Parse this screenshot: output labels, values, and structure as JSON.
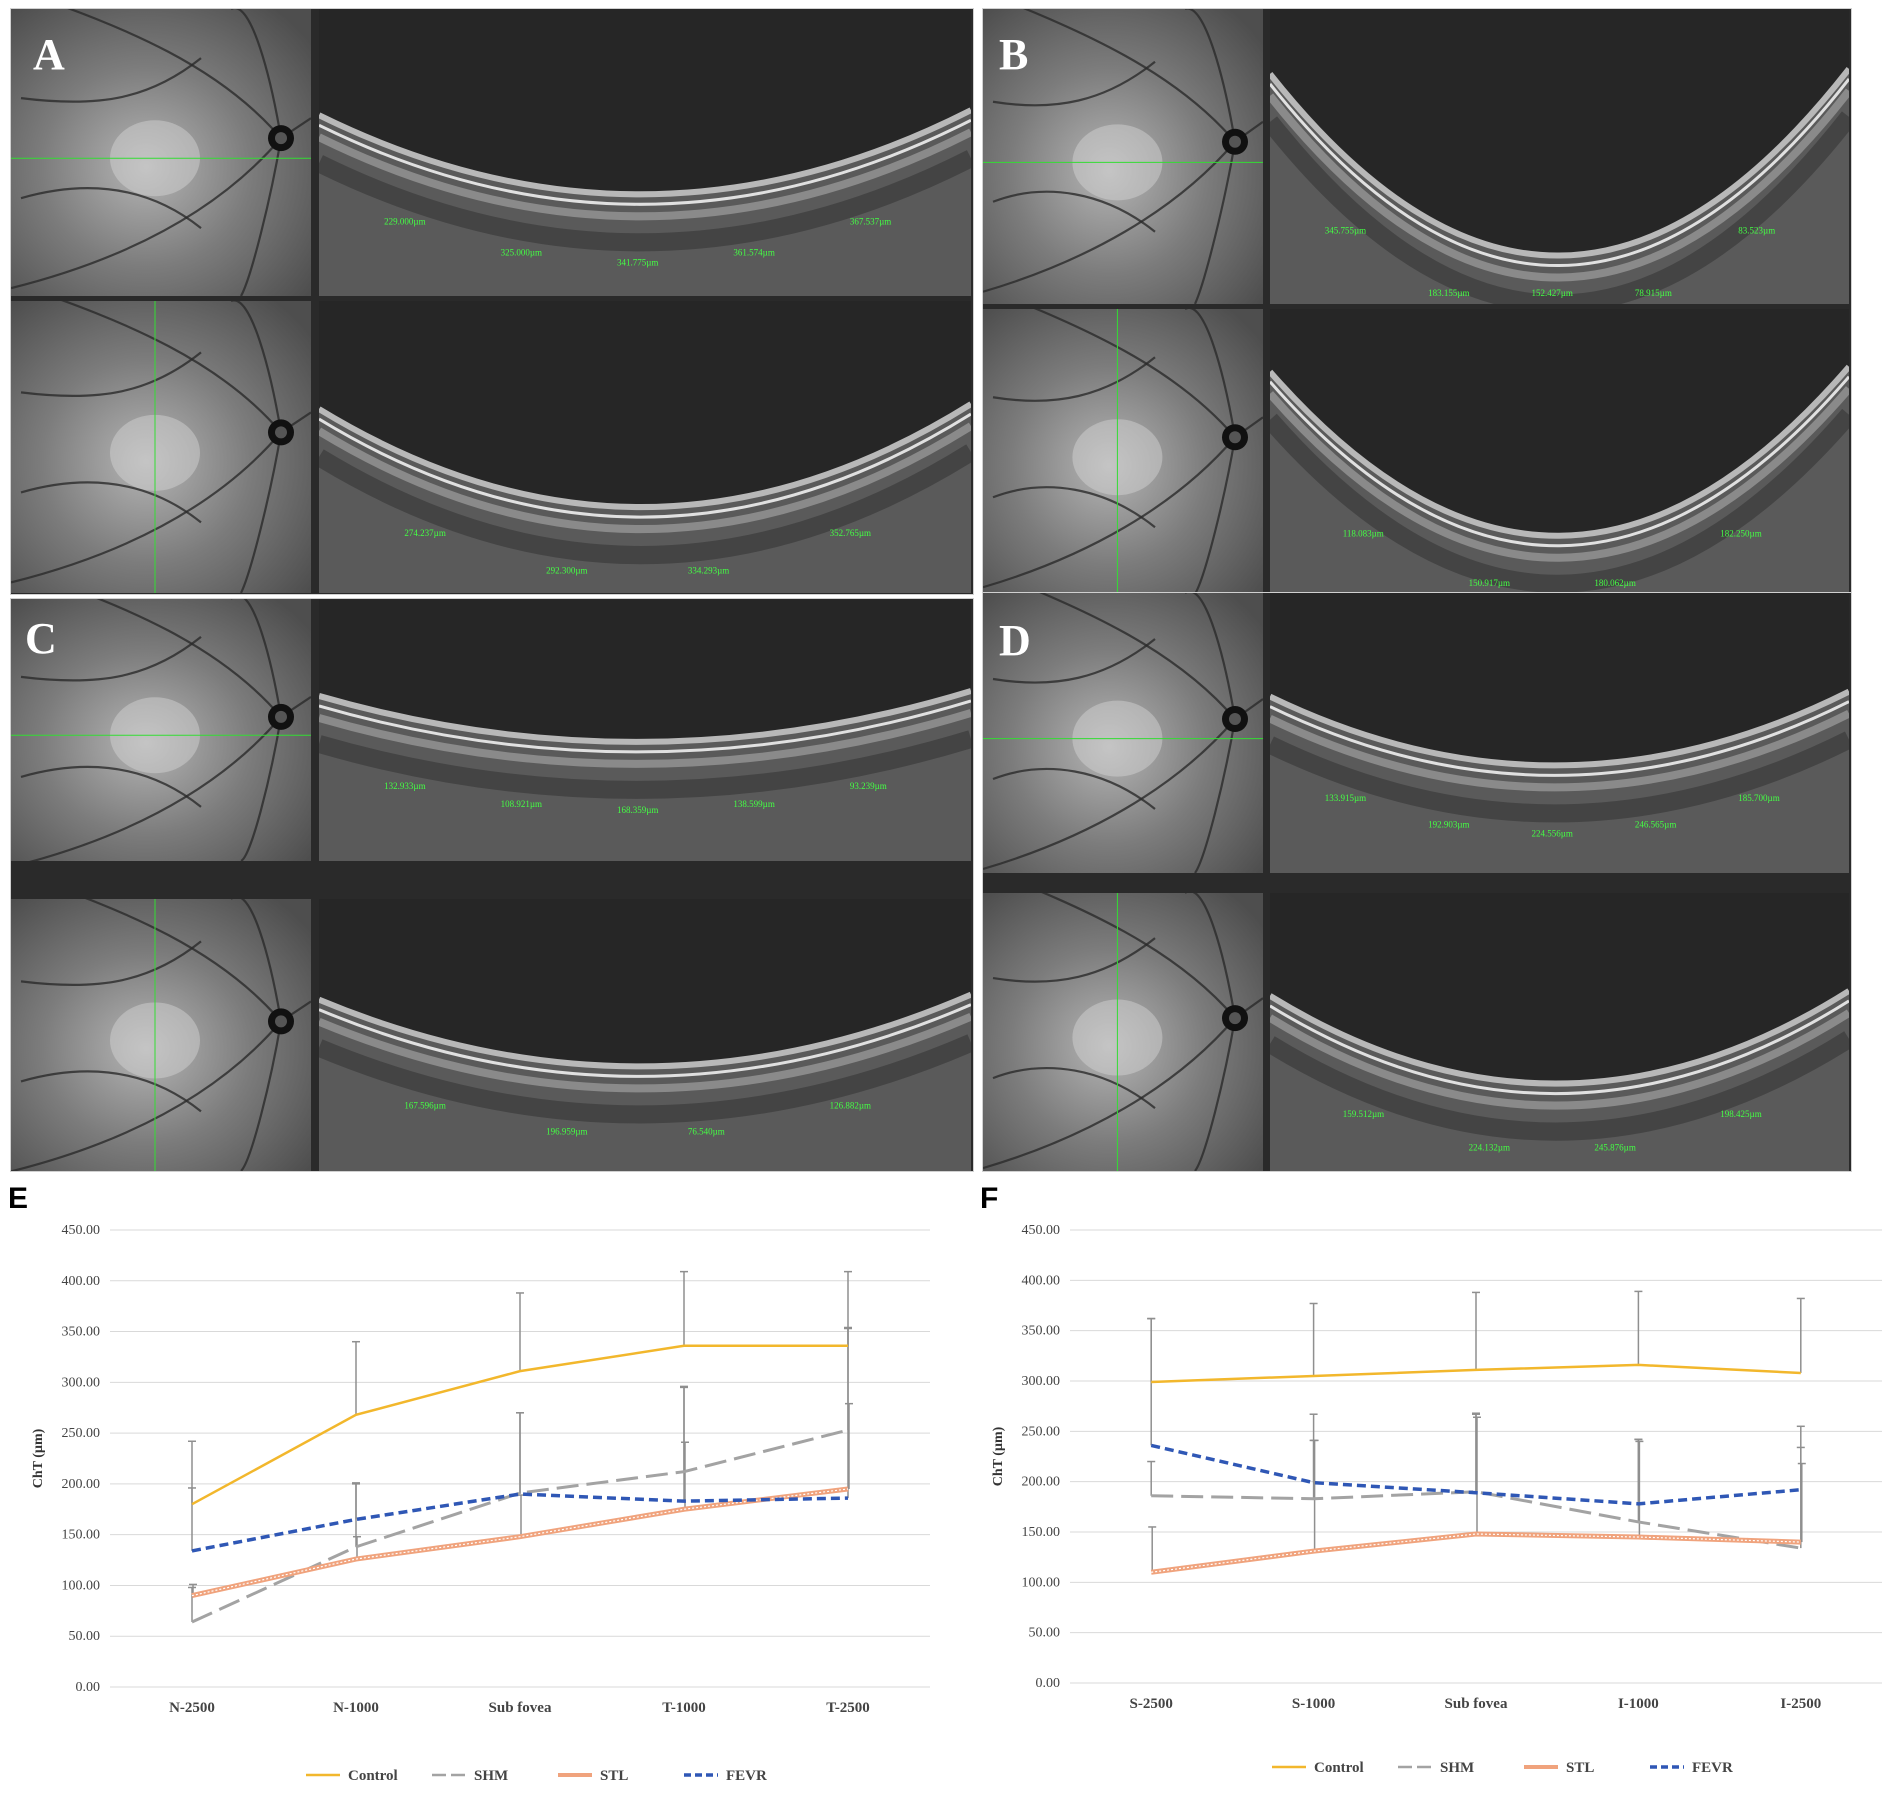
{
  "panels": [
    {
      "letter": "A",
      "top_measurements": [
        "229.000µm",
        "325.000µm",
        "341.775µm",
        "361.574µm",
        "367.537µm"
      ],
      "bottom_measurements": [
        "274.237µm",
        "292.300µm",
        "334.293µm",
        "352.765µm"
      ]
    },
    {
      "letter": "B",
      "top_measurements": [
        "345.755µm",
        "183.155µm",
        "152.427µm",
        "78.915µm",
        "83.523µm"
      ],
      "bottom_measurements": [
        "118.083µm",
        "150.917µm",
        "180.062µm",
        "182.250µm"
      ]
    },
    {
      "letter": "C",
      "top_measurements": [
        "132.933µm",
        "108.921µm",
        "168.359µm",
        "138.599µm",
        "93.239µm"
      ],
      "bottom_measurements": [
        "167.596µm",
        "196.959µm",
        "76.540µm",
        "126.882µm"
      ]
    },
    {
      "letter": "D",
      "top_measurements": [
        "133.915µm",
        "192.903µm",
        "224.556µm",
        "246.565µm",
        "185.700µm"
      ],
      "bottom_measurements": [
        "159.512µm",
        "224.132µm",
        "245.876µm",
        "198.425µm"
      ]
    }
  ],
  "colors": {
    "control": "#f2b72c",
    "shm": "#a3a3a3",
    "stl": "#f0a37d",
    "fevr": "#2f57b5",
    "measure": "#44ff44"
  },
  "chart_data": [
    {
      "panel": "E",
      "type": "line",
      "ylabel": "ChT (µm)",
      "ylim": [
        0,
        450
      ],
      "yticks": [
        "0.00",
        "50.00",
        "100.00",
        "150.00",
        "200.00",
        "250.00",
        "300.00",
        "350.00",
        "400.00",
        "450.00"
      ],
      "categories": [
        "N-2500",
        "N-1000",
        "Sub fovea",
        "T-1000",
        "T-2500"
      ],
      "legend": "bottom",
      "series": [
        {
          "name": "Control",
          "values": [
            180,
            268,
            311,
            336,
            336
          ],
          "errors": [
            62,
            72,
            77,
            73,
            73
          ]
        },
        {
          "name": "SHM",
          "values": [
            64,
            138,
            191,
            212,
            253
          ],
          "errors": [
            34,
            63,
            79,
            83,
            100
          ]
        },
        {
          "name": "STL",
          "values": [
            90,
            126,
            148,
            175,
            195
          ],
          "errors": [
            11,
            22,
            41,
            66,
            84
          ]
        },
        {
          "name": "FEVR",
          "values": [
            134,
            165,
            190,
            183,
            186
          ],
          "errors": [
            62,
            35,
            80,
            113,
            168
          ]
        }
      ]
    },
    {
      "panel": "F",
      "type": "line",
      "ylabel": "ChT (µm)",
      "ylim": [
        0,
        450
      ],
      "yticks": [
        "0.00",
        "50.00",
        "100.00",
        "150.00",
        "200.00",
        "250.00",
        "300.00",
        "350.00",
        "400.00",
        "450.00"
      ],
      "categories": [
        "S-2500",
        "S-1000",
        "Sub fovea",
        "I-1000",
        "I-2500"
      ],
      "legend": "bottom",
      "series": [
        {
          "name": "Control",
          "values": [
            299,
            305,
            311,
            316,
            308
          ],
          "errors": [
            63,
            72,
            77,
            73,
            74
          ]
        },
        {
          "name": "SHM",
          "values": [
            186,
            183,
            190,
            160,
            134
          ],
          "errors": [
            34,
            58,
            77,
            82,
            100
          ]
        },
        {
          "name": "STL",
          "values": [
            110,
            131,
            148,
            145,
            140
          ],
          "errors": [
            45,
            110,
            116,
            95,
            78
          ]
        },
        {
          "name": "FEVR",
          "values": [
            236,
            199,
            189,
            178,
            192
          ],
          "errors": [
            126,
            68,
            79,
            64,
            63
          ]
        }
      ]
    }
  ]
}
